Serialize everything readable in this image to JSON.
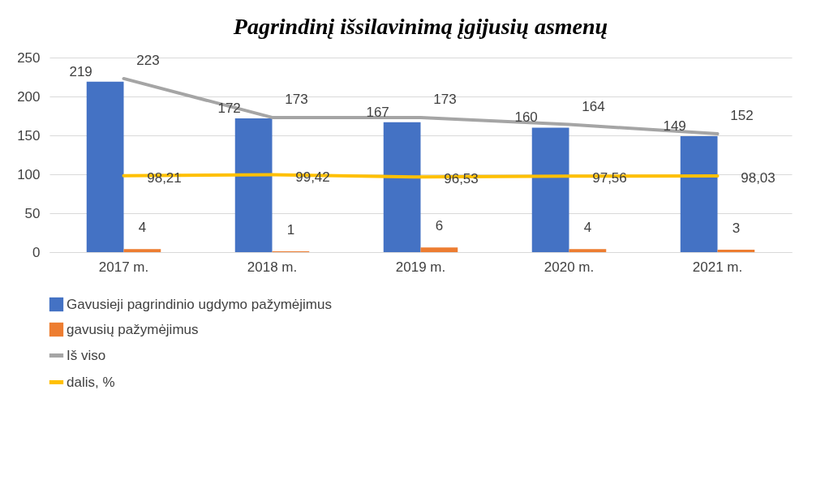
{
  "chart_data": {
    "type": "bar",
    "title": "Pagrindinį išsilavinimą įgijusių asmenų",
    "categories": [
      "2017 m.",
      "2018 m.",
      "2019 m.",
      "2020 m.",
      "2021 m."
    ],
    "series": [
      {
        "name": "Gavusieji pagrindinio ugdymo pažymėjimus",
        "color": "#4472c4",
        "values": [
          219,
          172,
          167,
          160,
          149
        ],
        "value_labels": [
          "219",
          "172",
          "167",
          "160",
          "149"
        ]
      },
      {
        "name": "gavusių pažymėjimus",
        "color": "#ed7d31",
        "values": [
          4,
          1,
          6,
          4,
          3
        ],
        "value_labels": [
          "4",
          "1",
          "6",
          "4",
          "3"
        ]
      },
      {
        "name": "Iš viso",
        "type": "line",
        "color": "#a5a5a5",
        "values": [
          223,
          173,
          173,
          164,
          152
        ],
        "value_labels": [
          "223",
          "173",
          "173",
          "164",
          "152"
        ]
      },
      {
        "name": "dalis, %",
        "type": "line",
        "color": "#ffc000",
        "values": [
          98.21,
          99.42,
          96.53,
          97.56,
          98.03
        ],
        "value_labels": [
          "98,21",
          "99,42",
          "96,53",
          "97,56",
          "98,03"
        ]
      }
    ],
    "ylim": [
      0,
      250
    ],
    "yticks": [
      0,
      50,
      100,
      150,
      200,
      250
    ],
    "grid": "y",
    "legend": "bottom"
  }
}
